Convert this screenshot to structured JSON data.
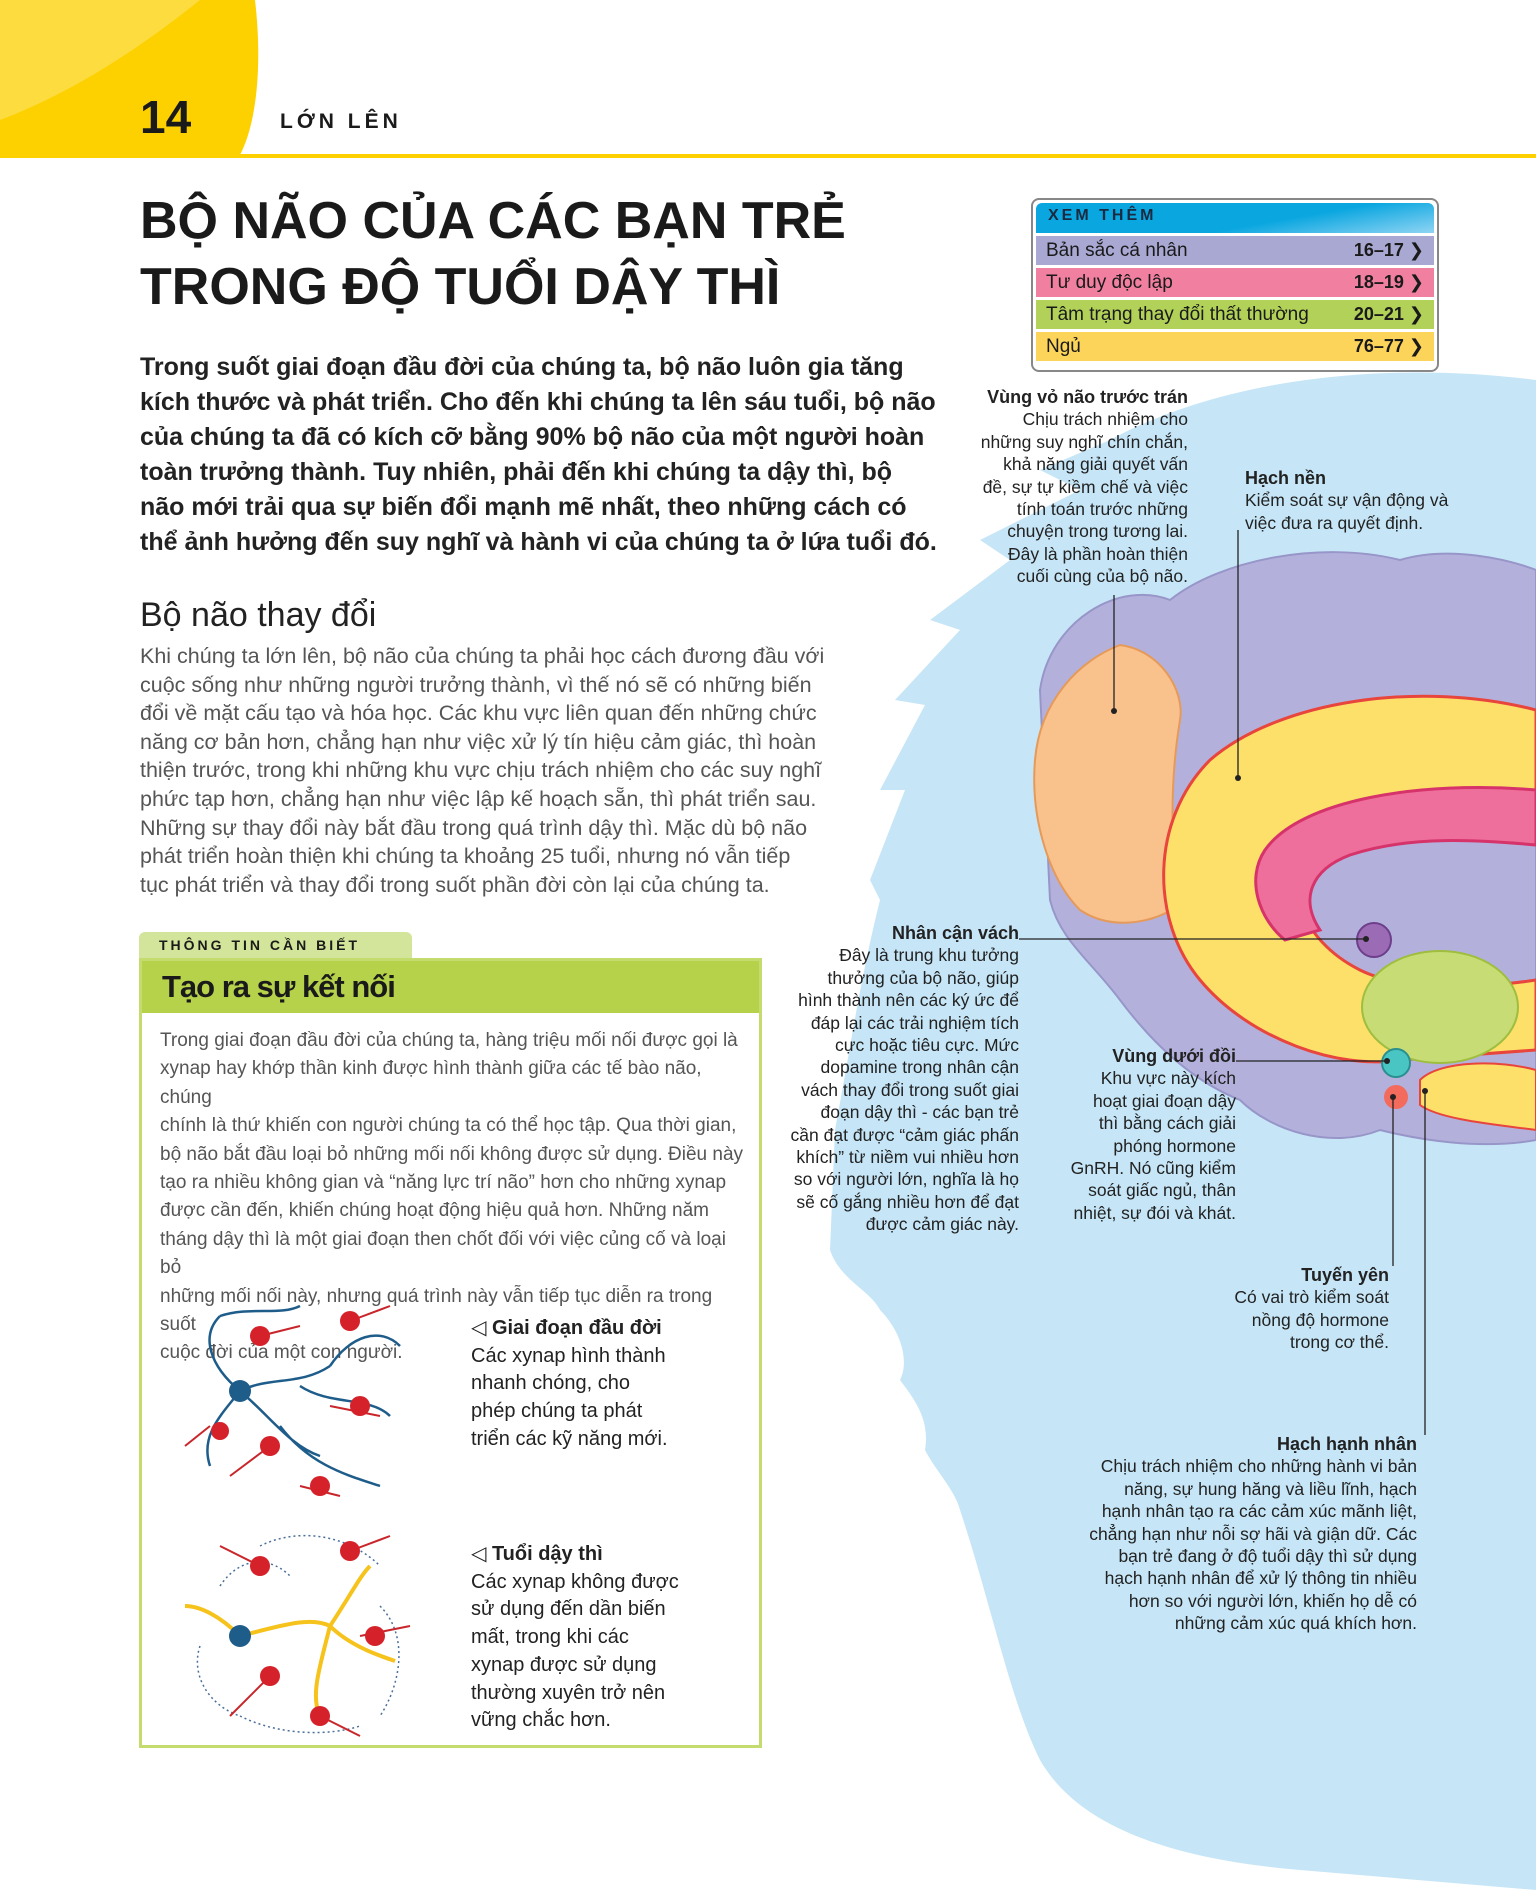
{
  "header": {
    "page_number": "14",
    "section": "LỚN LÊN"
  },
  "title": "BỘ NÃO CỦA CÁC BẠN TRẺ\nTRONG ĐỘ TUỔI DẬY THÌ",
  "lead": "Trong suốt giai đoạn đầu đời của chúng ta, bộ não luôn gia tăng\nkích thước và phát triển. Cho đến khi chúng ta lên sáu tuổi, bộ não\ncủa chúng ta đã có kích cỡ bằng 90% bộ não của một người hoàn\ntoàn trưởng thành. Tuy nhiên, phải đến khi chúng ta dậy thì, bộ\nnão mới trải qua sự biến đổi mạnh mẽ nhất, theo những cách có\nthể ảnh hưởng đến suy nghĩ và hành vi của chúng ta ở lứa tuổi đó.",
  "section2": {
    "heading": "Bộ não thay đổi",
    "body": "Khi chúng ta lớn lên, bộ não của chúng ta phải học cách đương đầu với\ncuộc sống như những người trưởng thành, vì thế nó sẽ có những biến\nđổi về mặt cấu tạo và hóa học. Các khu vực liên quan đến những chức\nnăng cơ bản hơn, chẳng hạn như việc xử lý tín hiệu cảm giác, thì hoàn\nthiện trước, trong khi những khu vực chịu trách nhiệm cho các suy nghĩ\nphức tạp hơn, chẳng hạn như việc lập kế hoạch sẵn, thì phát triển sau.\nNhững sự thay đổi này bắt đầu trong quá trình dậy thì. Mặc dù bộ não\nphát triển hoàn thiện khi chúng ta khoảng 25 tuổi, nhưng nó vẫn tiếp\ntục phát triển và thay đổi trong suốt phần đời còn lại của chúng ta."
  },
  "see_also": {
    "heading": "XEM THÊM",
    "items": [
      {
        "label": "Bản sắc cá nhân",
        "pages": "16–17 ❯",
        "color": "#a9a8d3"
      },
      {
        "label": "Tư duy độc lập",
        "pages": "18–19 ❯",
        "color": "#f07fa0"
      },
      {
        "label": "Tâm trạng thay đổi thất thường",
        "pages": "20–21 ❯",
        "color": "#b2d158"
      },
      {
        "label": "Ngủ",
        "pages": "76–77 ❯",
        "color": "#fcd45a"
      }
    ]
  },
  "info_box": {
    "tab": "THÔNG TIN CẦN BIẾT",
    "heading": "Tạo ra sự kết nối",
    "text": "Trong giai đoạn đầu đời của chúng ta, hàng triệu mối nối được gọi là\nxynap hay khớp thần kinh được hình thành giữa các tế bào não, chúng\nchính là thứ khiến con người chúng ta có thể học tập. Qua thời gian,\nbộ não bắt đầu loại bỏ những mối nối không được sử dụng. Điều này\ntạo ra nhiều không gian và “năng lực trí não” hơn cho những xynap\nđược cần đến, khiến chúng hoạt động hiệu quả hơn. Những năm\ntháng dậy thì là một giai đoạn then chốt đối với việc củng cố và loại bỏ\nnhững mối nối này, nhưng quá trình này vẫn tiếp tục diễn ra trong suốt\ncuộc đời của một con người.",
    "captions": [
      {
        "title": "◁ Giai đoạn đầu đời",
        "text": "Các xynap hình thành\nnhanh chóng, cho\nphép chúng ta phát\ntriển các kỹ năng mới."
      },
      {
        "title": "◁ Tuổi dậy thì",
        "text": "Các xynap không được\nsử dụng đến dần biến\nmất, trong khi các\nxynap được sử dụng\nthường xuyên trở nên\nvững chắc hơn."
      }
    ]
  },
  "annotations": {
    "prefrontal": {
      "title": "Vùng vỏ não trước trán",
      "text": "Chịu trách nhiệm cho\nnhững suy nghĩ chín chắn,\nkhả năng giải quyết vấn\nđề, sự tự kiềm chế và việc\ntính toán trước những\nchuyện trong tương lai.\nĐây là phần hoàn thiện\ncuối cùng của bộ não."
    },
    "basal_ganglia": {
      "title": "Hạch nền",
      "text": "Kiểm soát sự vận động và\nviệc đưa ra quyết định."
    },
    "nucleus_accumbens": {
      "title": "Nhân cận vách",
      "text": "Đây là trung khu tưởng\nthưởng của bộ não, giúp\nhình thành nên các ký ức để\nđáp lại các trải nghiệm tích\ncực hoặc tiêu cực. Mức\ndopamine trong nhân cận\nvách thay đổi trong suốt giai\nđoạn dậy thì - các bạn trẻ\ncần đạt được “cảm giác phấn\nkhích” từ niềm vui nhiều hơn\nso với người lớn, nghĩa là họ\nsẽ cố gắng nhiều hơn để đạt\nđược cảm giác này."
    },
    "hypothalamus": {
      "title": "Vùng dưới đồi",
      "text": "Khu vực này kích\nhoạt giai đoạn dậy\nthì bằng cách giải\nphóng hormone\nGnRH. Nó cũng kiểm\nsoát giấc ngủ, thân\nnhiệt, sự đói và khát."
    },
    "pituitary": {
      "title": "Tuyến yên",
      "text": "Có vai trò kiểm soát\nnồng độ hormone\ntrong cơ thể."
    },
    "amygdala": {
      "title": "Hạch hạnh nhân",
      "text": "Chịu trách nhiệm cho những hành vi bản\nnăng, sự hung hăng và liều lĩnh, hạch\nhạnh nhân tạo ra các cảm xúc mãnh liệt,\nchẳng hạn như nỗi sợ hãi và giận dữ. Các\nbạn trẻ đang ở độ tuổi dậy thì sử dụng\nhạch hạnh nhân để xử lý thông tin nhiều\nhơn so với người lớn, khiến họ dễ có\nnhững cảm xúc quá khích hơn."
    }
  },
  "colors": {
    "accent_yellow": "#fdd100",
    "head_blue": "#c6e6f7",
    "brain_lavender": "#b3b1dc",
    "frontal_orange": "#f9c18c",
    "green": "#b5d24a"
  }
}
